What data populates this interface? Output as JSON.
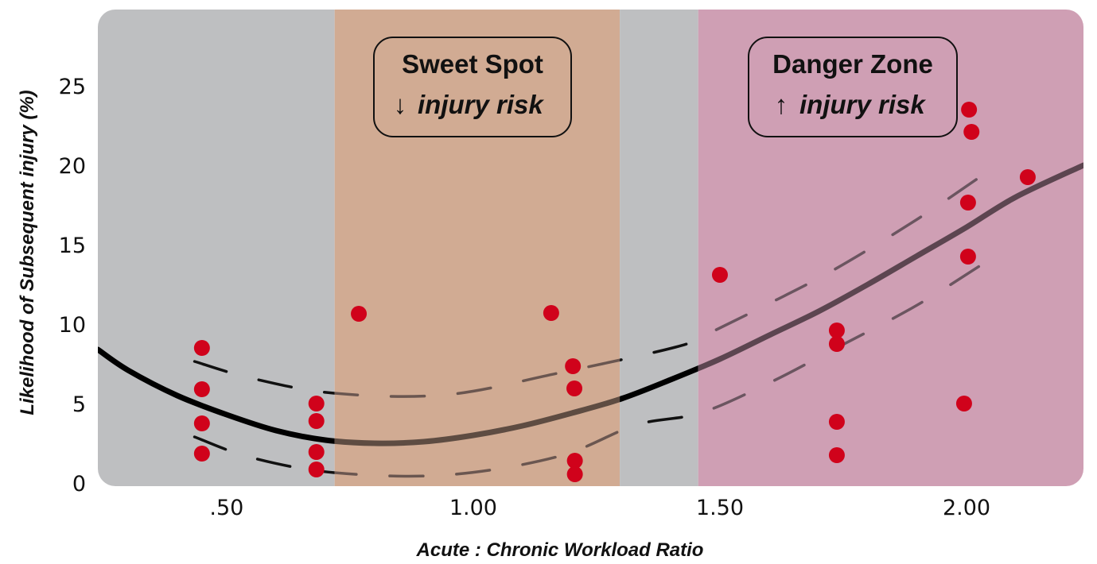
{
  "chart_data": {
    "type": "scatter",
    "title": "",
    "xlabel": "Acute : Chronic Workload Ratio",
    "ylabel": "Likelihood of Subsequent injury (%)",
    "xlim": [
      0.239,
      2.237
    ],
    "ylim": [
      -0.2,
      29.8
    ],
    "grid": false,
    "x_ticks": [
      {
        "value": 0.5,
        "label": ".50"
      },
      {
        "value": 1.0,
        "label": "1.00"
      },
      {
        "value": 1.5,
        "label": "1.50"
      },
      {
        "value": 2.0,
        "label": "2.00"
      }
    ],
    "y_ticks": [
      {
        "value": 0,
        "label": "0"
      },
      {
        "value": 5,
        "label": "5"
      },
      {
        "value": 10,
        "label": "10"
      },
      {
        "value": 15,
        "label": "15"
      },
      {
        "value": 20,
        "label": "20"
      },
      {
        "value": 25,
        "label": "25"
      }
    ],
    "regions": [
      {
        "name": "neutral-low",
        "from": 0.239,
        "to": 0.719,
        "color": "#bebfc1"
      },
      {
        "name": "sweet-spot",
        "from": 0.719,
        "to": 1.297,
        "color": "#d1ab93"
      },
      {
        "name": "neutral-mid",
        "from": 1.297,
        "to": 1.456,
        "color": "#bebfc1"
      },
      {
        "name": "danger-zone",
        "from": 1.456,
        "to": 2.237,
        "color": "#cf9fb4"
      }
    ],
    "annotations": [
      {
        "title": "Sweet Spot",
        "arrow": "↓",
        "text": "injury risk"
      },
      {
        "title": "Danger Zone",
        "arrow": "↑",
        "text": "injury risk"
      }
    ],
    "points": {
      "color": "#d0021b",
      "x": [
        0.45,
        0.45,
        0.45,
        0.45,
        0.682,
        0.682,
        0.682,
        0.682,
        0.768,
        1.158,
        1.202,
        1.205,
        1.206,
        1.206,
        1.5,
        1.737,
        1.737,
        1.737,
        1.737,
        2.005,
        2.01,
        2.003,
        2.003,
        1.995,
        2.124
      ],
      "y": [
        8.5,
        5.9,
        3.75,
        1.85,
        5.0,
        3.9,
        1.95,
        0.85,
        10.65,
        10.7,
        7.35,
        5.95,
        1.4,
        0.55,
        13.1,
        9.6,
        8.75,
        3.85,
        1.75,
        23.5,
        22.1,
        17.65,
        14.25,
        5.0,
        19.25
      ]
    },
    "fit_curve": {
      "x": [
        0.239,
        0.3,
        0.4,
        0.5,
        0.6,
        0.7,
        0.8,
        0.9,
        1.0,
        1.1,
        1.2,
        1.3,
        1.4,
        1.5,
        1.6,
        1.7,
        1.8,
        1.9,
        2.0,
        2.1,
        2.237
      ],
      "y": [
        8.4,
        7.1,
        5.5,
        4.3,
        3.3,
        2.7,
        2.5,
        2.6,
        3.0,
        3.6,
        4.4,
        5.3,
        6.5,
        7.8,
        9.3,
        10.8,
        12.5,
        14.3,
        16.1,
        18.0,
        20.0
      ]
    },
    "upper_band": {
      "x": [
        0.435,
        0.55,
        0.718,
        0.944,
        1.17,
        1.41,
        1.476,
        1.6,
        1.73,
        1.9,
        2.05
      ],
      "y": [
        7.65,
        6.6,
        5.65,
        5.55,
        6.9,
        8.55,
        9.4,
        11.3,
        13.4,
        16.6,
        19.75
      ]
    },
    "lower_band": {
      "x": [
        0.435,
        0.55,
        0.718,
        0.944,
        1.17,
        1.33,
        1.46,
        1.6,
        1.73,
        1.9,
        2.056
      ],
      "y": [
        2.9,
        1.6,
        0.65,
        0.5,
        1.65,
        3.65,
        4.4,
        6.3,
        8.4,
        11.2,
        14.25
      ]
    }
  }
}
